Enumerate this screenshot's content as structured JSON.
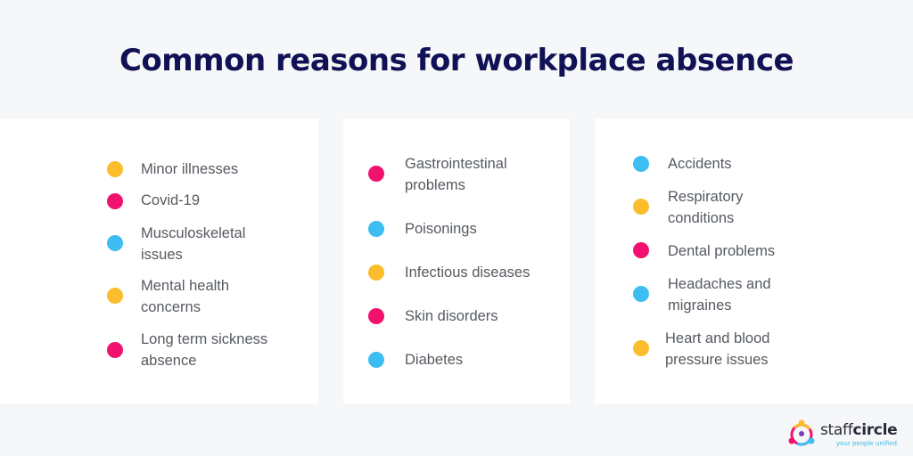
{
  "title": "Common reasons for workplace absence",
  "colors": {
    "yellow": "#fbbd2c",
    "pink": "#f0126e",
    "blue": "#3ebdf0",
    "navy": "#0f0c48",
    "title": "#111155"
  },
  "columns": [
    {
      "items": [
        {
          "label": "Minor illnesses",
          "color": "#fbbd2c"
        },
        {
          "label": "Covid-19",
          "color": "#f0126e"
        },
        {
          "label": "Musculoskeletal\nissues",
          "color": "#3ebdf0"
        },
        {
          "label": "Mental health\nconcerns",
          "color": "#fbbd2c"
        },
        {
          "label": "Long term sickness\nabsence",
          "color": "#f0126e"
        }
      ]
    },
    {
      "items": [
        {
          "label": "Gastrointestinal\nproblems",
          "color": "#f0126e"
        },
        {
          "label": "Poisonings",
          "color": "#3ebdf0"
        },
        {
          "label": "Infectious diseases",
          "color": "#fbbd2c"
        },
        {
          "label": "Skin disorders",
          "color": "#f0126e"
        },
        {
          "label": "Diabetes",
          "color": "#3ebdf0"
        }
      ]
    },
    {
      "items": [
        {
          "label": "Accidents",
          "color": "#3ebdf0"
        },
        {
          "label": "Respiratory\nconditions",
          "color": "#fbbd2c"
        },
        {
          "label": "Dental problems",
          "color": "#f0126e"
        },
        {
          "label": "Headaches and\nmigraines",
          "color": "#3ebdf0"
        },
        {
          "label": "Heart and blood\npressure issues",
          "color": "#fbbd2c"
        }
      ]
    }
  ],
  "logo": {
    "word_light": "staff",
    "word_bold": "circle",
    "tagline": "your people unified",
    "icon": "staffcircle-logo-icon"
  }
}
